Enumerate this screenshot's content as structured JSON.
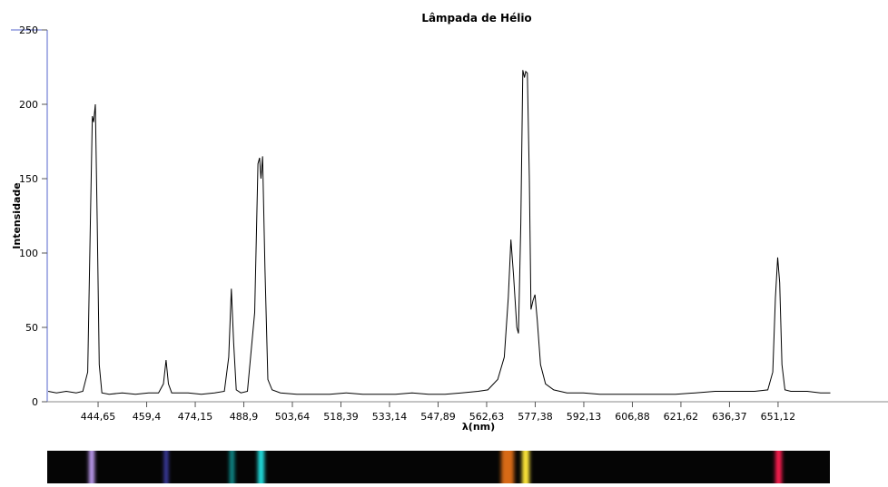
{
  "chart_data": {
    "type": "line",
    "title": "Lâmpada de Hélio",
    "x_label": "λ(nm)",
    "y_label": "Intensidade",
    "xlim": [
      429.2,
      684.5
    ],
    "ylim": [
      0,
      250
    ],
    "xticks": [
      {
        "value": 444.65,
        "label": "444,65"
      },
      {
        "value": 459.4,
        "label": "459,4"
      },
      {
        "value": 474.15,
        "label": "474,15"
      },
      {
        "value": 488.9,
        "label": "488,9"
      },
      {
        "value": 503.64,
        "label": "503,64"
      },
      {
        "value": 518.39,
        "label": "518,39"
      },
      {
        "value": 533.14,
        "label": "533,14"
      },
      {
        "value": 547.89,
        "label": "547,89"
      },
      {
        "value": 562.63,
        "label": "562,63"
      },
      {
        "value": 577.38,
        "label": "577,38"
      },
      {
        "value": 592.13,
        "label": "592,13"
      },
      {
        "value": 606.88,
        "label": "606,88"
      },
      {
        "value": 621.62,
        "label": "621,62"
      },
      {
        "value": 636.37,
        "label": "636,37"
      },
      {
        "value": 651.12,
        "label": "651,12"
      }
    ],
    "yticks": [
      0,
      50,
      100,
      150,
      200,
      250
    ],
    "color": "#000000",
    "x": [
      429.5,
      432,
      435,
      438,
      440,
      441.5,
      442.3,
      442.9,
      443.3,
      443.8,
      444.4,
      445,
      445.8,
      448,
      452,
      456,
      460,
      463,
      464.5,
      465.3,
      466,
      467,
      472,
      476,
      480,
      483,
      484.3,
      485.1,
      485.8,
      486.6,
      488,
      490,
      492.2,
      493.2,
      493.7,
      494.1,
      494.6,
      495.3,
      496.2,
      497.5,
      500,
      505,
      510,
      515,
      520,
      525,
      530,
      535,
      540,
      545,
      550,
      555,
      560,
      563,
      566,
      568,
      569.2,
      570,
      570.8,
      571.8,
      572.3,
      573,
      573.6,
      574.1,
      574.5,
      575,
      575.6,
      576.1,
      576.7,
      577.3,
      578,
      579,
      580.5,
      583,
      587,
      592,
      597,
      602,
      608,
      614,
      620,
      626,
      632,
      638,
      644,
      648,
      649.5,
      650.3,
      651,
      651.6,
      652.3,
      653.2,
      655,
      660,
      664,
      667
    ],
    "values": [
      7,
      6,
      7,
      6,
      7,
      20,
      120,
      192,
      188,
      200,
      120,
      25,
      6,
      5,
      6,
      5,
      6,
      6,
      12,
      28,
      12,
      6,
      6,
      5,
      6,
      7,
      30,
      76,
      40,
      8,
      6,
      7,
      60,
      160,
      164,
      150,
      165,
      90,
      15,
      8,
      6,
      5,
      5,
      5,
      6,
      5,
      5,
      5,
      6,
      5,
      5,
      6,
      7,
      8,
      15,
      30,
      70,
      109,
      85,
      50,
      46,
      120,
      223,
      218,
      222,
      221,
      150,
      62,
      68,
      72,
      55,
      25,
      12,
      8,
      6,
      6,
      5,
      5,
      5,
      5,
      5,
      6,
      7,
      7,
      7,
      8,
      20,
      70,
      97,
      80,
      25,
      8,
      7,
      7,
      6,
      6
    ]
  }
}
